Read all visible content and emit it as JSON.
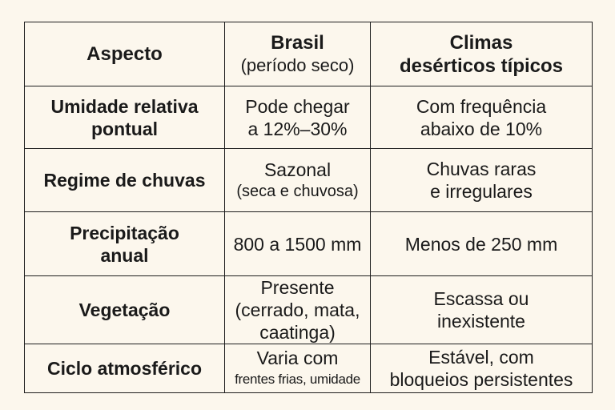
{
  "header": {
    "aspect": "Aspecto",
    "brasil_title": "Brasil",
    "brasil_subtitle": "(período seco)",
    "desert_title_line1": "Climas",
    "desert_title_line2": "desérticos típicos"
  },
  "rows": [
    {
      "aspect_lines": [
        "Umidade relativa",
        "pontual"
      ],
      "brasil_lines": [
        "Pode chegar",
        "a 12%–30%"
      ],
      "desert_lines": [
        "Com frequência",
        "abaixo de 10%"
      ]
    },
    {
      "aspect_lines": [
        "Regime de chuvas"
      ],
      "brasil_lines": [
        "Sazonal",
        "(seca e chuvosa)"
      ],
      "desert_lines": [
        "Chuvas raras",
        "e irregulares"
      ]
    },
    {
      "aspect_lines": [
        "Precipitação",
        "anual"
      ],
      "brasil_lines": [
        "800 a 1500 mm"
      ],
      "desert_lines": [
        "Menos de 250 mm"
      ]
    },
    {
      "aspect_lines": [
        "Vegetação"
      ],
      "brasil_lines": [
        "Presente",
        "(cerrado, mata,",
        "caatinga)"
      ],
      "desert_lines": [
        "Escassa ou",
        "inexistente"
      ]
    },
    {
      "aspect_lines": [
        "Ciclo atmosférico"
      ],
      "brasil_lines": [
        "Varia com",
        "frentes frias, umidade"
      ],
      "desert_lines": [
        "Estável, com",
        "bloqueios persistentes"
      ]
    }
  ]
}
